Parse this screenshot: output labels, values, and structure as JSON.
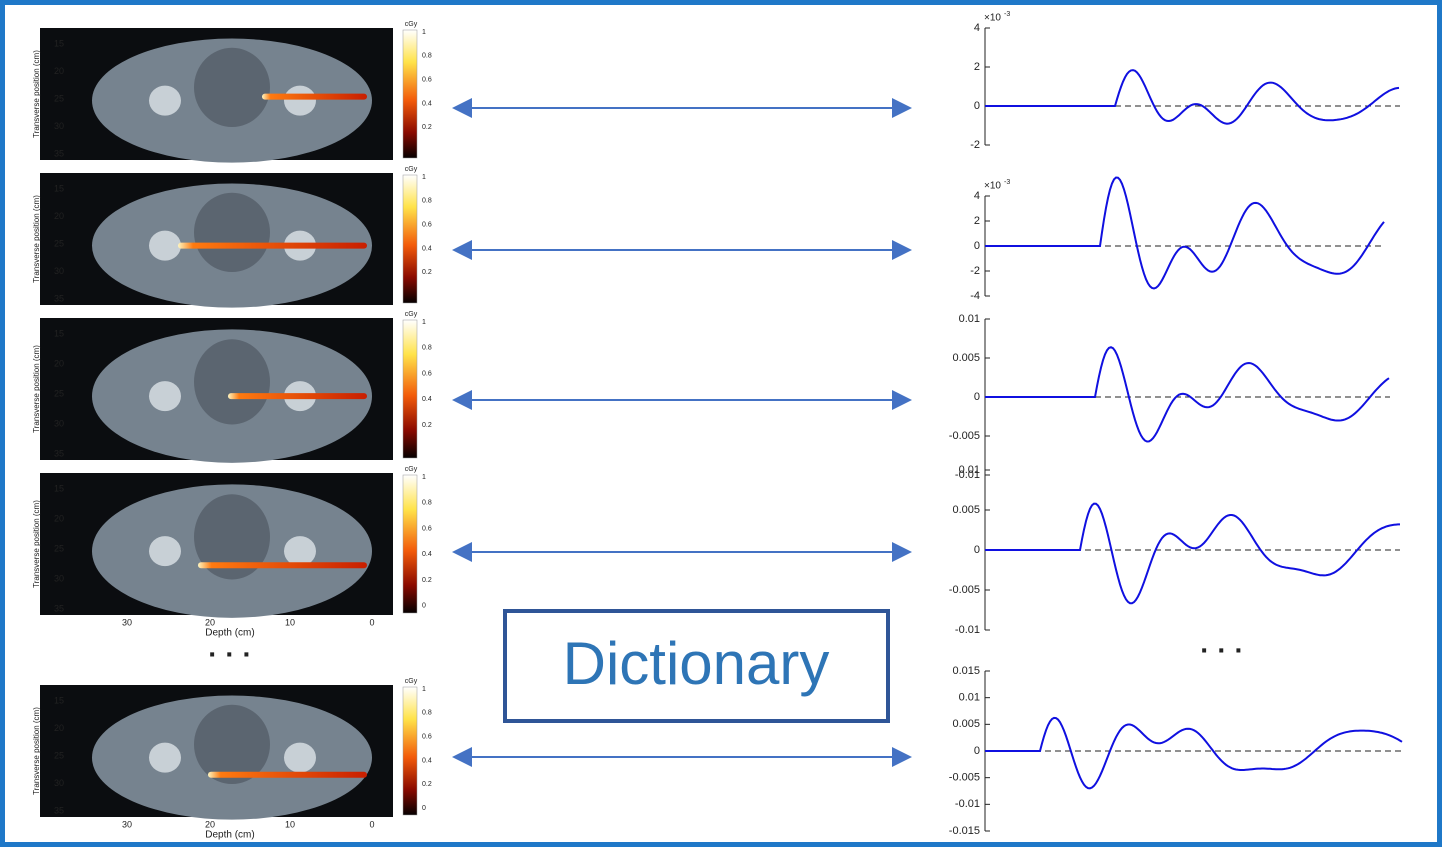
{
  "left_panels": [
    {
      "y_label": "Transverse position (cm)",
      "y_ticks": [
        "15",
        "20",
        "25",
        "30",
        "35"
      ],
      "colorbar_label": "cGy",
      "colorbar_ticks": [
        "1",
        "0.8",
        "0.6",
        "0.4",
        "0.2"
      ]
    },
    {
      "y_label": "Transverse position (cm)",
      "y_ticks": [
        "15",
        "20",
        "25",
        "30",
        "35"
      ],
      "colorbar_label": "cGy",
      "colorbar_ticks": [
        "1",
        "0.8",
        "0.6",
        "0.4",
        "0.2"
      ]
    },
    {
      "y_label": "Transverse position (cm)",
      "y_ticks": [
        "15",
        "20",
        "25",
        "30",
        "35"
      ],
      "colorbar_label": "cGy",
      "colorbar_ticks": [
        "1",
        "0.8",
        "0.6",
        "0.4",
        "0.2"
      ]
    },
    {
      "y_label": "Transverse position (cm)",
      "y_ticks": [
        "15",
        "20",
        "25",
        "30",
        "35"
      ],
      "colorbar_label": "cGy",
      "colorbar_ticks": [
        "1",
        "0.8",
        "0.6",
        "0.4",
        "0.2",
        "0"
      ],
      "x_label": "Depth (cm)",
      "x_ticks": [
        "30",
        "20",
        "10",
        "0"
      ]
    },
    {
      "y_label": "Transverse position (cm)",
      "y_ticks": [
        "15",
        "20",
        "25",
        "30",
        "35"
      ],
      "colorbar_label": "cGy",
      "colorbar_ticks": [
        "1",
        "0.8",
        "0.6",
        "0.4",
        "0.2",
        "0"
      ],
      "x_label": "Depth (cm)",
      "x_ticks": [
        "30",
        "20",
        "10",
        "0"
      ]
    }
  ],
  "right_plots": [
    {
      "exponent": {
        "base": "×10",
        "power": "-3"
      },
      "y_ticks": [
        "4",
        "2",
        "0",
        "-2"
      ]
    },
    {
      "exponent": {
        "base": "×10",
        "power": "-3"
      },
      "y_ticks": [
        "4",
        "2",
        "0",
        "-2",
        "-4"
      ]
    },
    {
      "y_ticks": [
        "0.01",
        "0.005",
        "0",
        "-0.005",
        "-0.01"
      ]
    },
    {
      "y_ticks": [
        "0.01",
        "0.005",
        "0",
        "-0.005",
        "-0.01"
      ]
    },
    {
      "y_ticks": [
        "0.015",
        "0.01",
        "0.005",
        "0",
        "-0.005",
        "-0.01",
        "-0.015"
      ]
    }
  ],
  "ellipsis_left": "· · ·",
  "ellipsis_right": "· · ·",
  "dictionary": "Dictionary"
}
